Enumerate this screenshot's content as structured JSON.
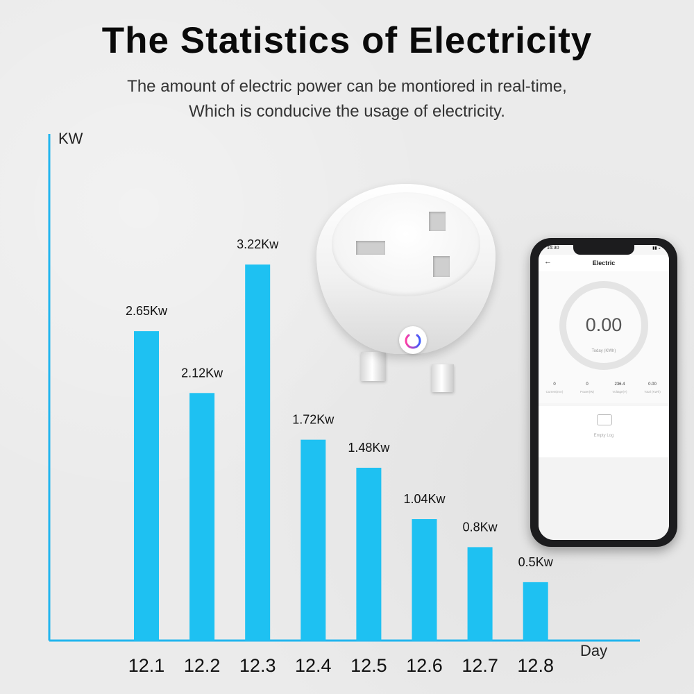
{
  "title": "The Statistics of Electricity",
  "subtitle_line1": "The amount of electric power can be montiored in real-time,",
  "subtitle_line2": "Which is conducive the usage of electricity.",
  "colors": {
    "bar": "#1ec1f2",
    "axis": "#22b5ee"
  },
  "chart_data": {
    "type": "bar",
    "ylabel": "KW",
    "xlabel": "Day",
    "categories": [
      "12.1",
      "12.2",
      "12.3",
      "12.4",
      "12.5",
      "12.6",
      "12.7",
      "12.8"
    ],
    "values": [
      2.65,
      2.12,
      3.22,
      1.72,
      1.48,
      1.04,
      0.8,
      0.5
    ],
    "data_labels": [
      "2.65Kw",
      "2.12Kw",
      "3.22Kw",
      "1.72Kw",
      "1.48Kw",
      "1.04Kw",
      "0.8Kw",
      "0.5Kw"
    ],
    "ylim": [
      0,
      4.0
    ],
    "grid": false,
    "legend": "none"
  },
  "phone": {
    "status_time": "16:30",
    "app_title": "Electric",
    "back_icon": "back-arrow-icon",
    "gauge_value": "0.00",
    "gauge_label": "Today (KWh)",
    "metrics": [
      {
        "value": "0",
        "label": "Current(mA)"
      },
      {
        "value": "0",
        "label": "Power(W)"
      },
      {
        "value": "236.4",
        "label": "Voltage(V)"
      },
      {
        "value": "0.00",
        "label": "Total (KWh)"
      }
    ],
    "log_icon": "empty-log-icon",
    "log_text": "Empty Log"
  },
  "plug": {
    "logo_icon": "power-logo-icon"
  }
}
